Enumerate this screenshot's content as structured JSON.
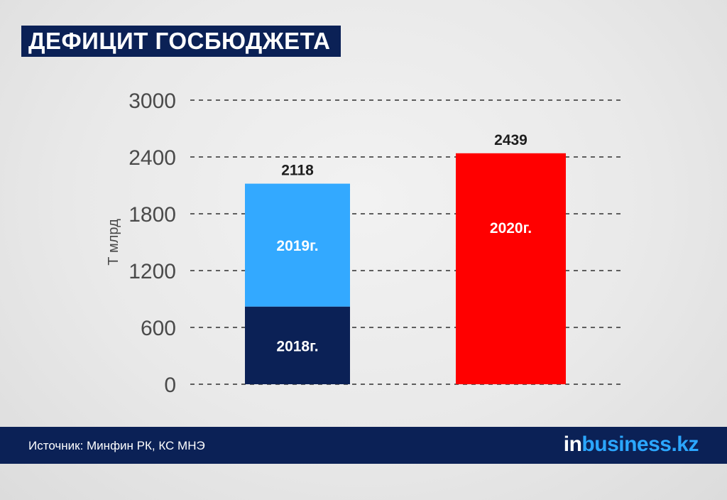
{
  "title": "ДЕФИЦИТ ГОСБЮДЖЕТА",
  "source": "Источник: Минфин РК, КС МНЭ",
  "logo": {
    "prefix": "in",
    "rest": "business.kz"
  },
  "colors": {
    "background": "#e9e9e9",
    "navy": "#0b2156",
    "series_2018": "#0b2156",
    "series_2019": "#33a9ff",
    "series_2020": "#ff0000",
    "logo_accent": "#2ba7ff"
  },
  "chart_data": {
    "type": "bar",
    "ylabel": "Т млрд",
    "ylim": [
      0,
      3000
    ],
    "yticks": [
      0,
      600,
      1200,
      1800,
      2400,
      3000
    ],
    "grid": true,
    "bars": [
      {
        "total": 2118,
        "segments": [
          {
            "label": "2018г.",
            "value": 820,
            "color": "#0b2156"
          },
          {
            "label": "2019г.",
            "value": 1298,
            "color": "#33a9ff"
          }
        ]
      },
      {
        "total": 2439,
        "segments": [
          {
            "label": "2020г.",
            "value": 2439,
            "color": "#ff0000"
          }
        ]
      }
    ]
  }
}
